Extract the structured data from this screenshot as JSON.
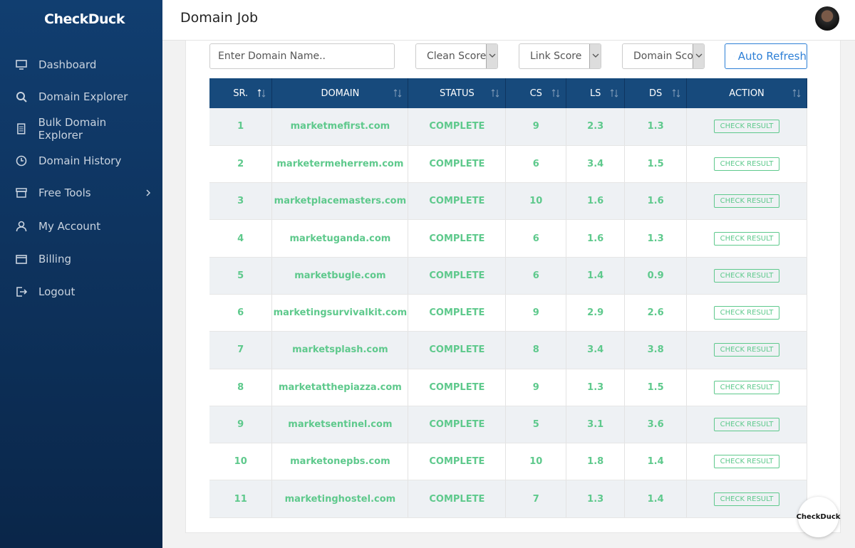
{
  "header": {
    "title": "Domain Job"
  },
  "sidebar": {
    "brand": "CheckDuck",
    "nav": [
      "Dashboard",
      "Domain Explorer",
      "Bulk Domain Explorer",
      "Domain History",
      "Free Tools",
      "My Account",
      "Billing",
      "Logout"
    ]
  },
  "filters": {
    "search_placeholder": "Enter Domain Name..",
    "selects": [
      "Clean Score",
      "Link Score",
      "Domain Score"
    ],
    "refresh_button": "Auto Refresh"
  },
  "table": {
    "columns": [
      "SR.",
      "DOMAIN",
      "STATUS",
      "CS",
      "LS",
      "DS",
      "ACTION"
    ],
    "rows": [
      [
        1,
        "marketmefirst.com",
        "COMPLETE",
        9,
        2.3,
        1.3
      ],
      [
        2,
        "marketermeherrem.com",
        "COMPLETE",
        6,
        3.4,
        1.5
      ],
      [
        3,
        "marketplacemasters.com",
        "COMPLETE",
        10,
        1.6,
        1.6
      ],
      [
        4,
        "marketuganda.com",
        "COMPLETE",
        6,
        1.6,
        1.3
      ],
      [
        5,
        "marketbugle.com",
        "COMPLETE",
        6,
        1.4,
        0.9
      ],
      [
        6,
        "marketingsurvivalkit.com",
        "COMPLETE",
        9,
        2.9,
        2.6
      ],
      [
        7,
        "marketsplash.com",
        "COMPLETE",
        8,
        3.4,
        3.8
      ],
      [
        8,
        "marketatthepiazza.com",
        "COMPLETE",
        9,
        1.3,
        1.5
      ],
      [
        9,
        "marketsentinel.com",
        "COMPLETE",
        5,
        3.1,
        3.6
      ],
      [
        10,
        "marketonepbs.com",
        "COMPLETE",
        10,
        1.8,
        1.4
      ],
      [
        11,
        "marketinghostel.com",
        "COMPLETE",
        7,
        1.3,
        1.4
      ]
    ],
    "action_label": "CHECK RESULT"
  },
  "badge": "CheckDuck"
}
